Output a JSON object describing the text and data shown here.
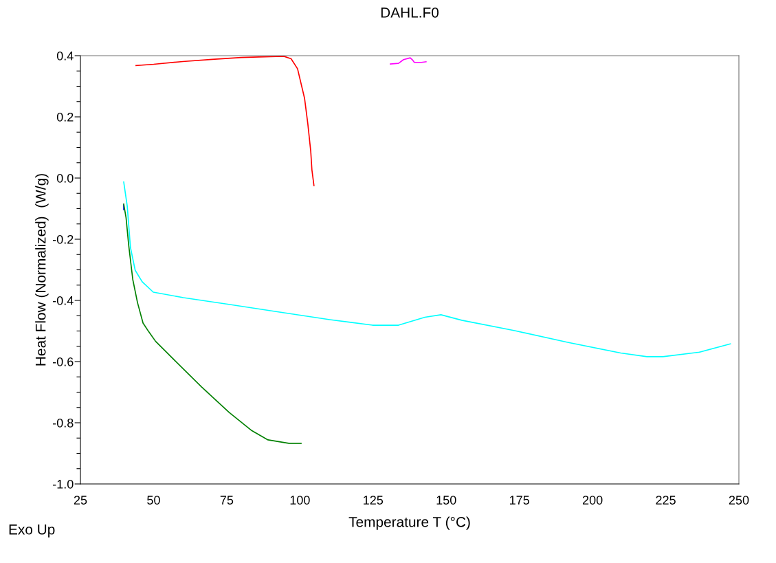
{
  "chart_data": {
    "type": "line",
    "title": "DAHL.F0",
    "xlabel": "Temperature T (°C)",
    "ylabel": "Heat Flow (Normalized)  (W/g)",
    "annotations": [
      "Exo Up"
    ],
    "grid": false,
    "marker": "none",
    "line_style": "solid",
    "xlim": [
      25,
      250
    ],
    "xticks": [
      25,
      50,
      75,
      100,
      125,
      150,
      175,
      200,
      225,
      250
    ],
    "ylim": [
      -1.0,
      0.4
    ],
    "yticks": [
      {
        "value": -1.0,
        "label": "-1.0"
      },
      {
        "value": -0.95,
        "label": null
      },
      {
        "value": -0.9,
        "label": null
      },
      {
        "value": -0.85,
        "label": null
      },
      {
        "value": -0.8,
        "label": "-0.8"
      },
      {
        "value": -0.75,
        "label": null
      },
      {
        "value": -0.7,
        "label": null
      },
      {
        "value": -0.65,
        "label": null
      },
      {
        "value": -0.6,
        "label": "-0.6"
      },
      {
        "value": -0.55,
        "label": null
      },
      {
        "value": -0.5,
        "label": null
      },
      {
        "value": -0.45,
        "label": null
      },
      {
        "value": -0.4,
        "label": "-0.4"
      },
      {
        "value": -0.35,
        "label": null
      },
      {
        "value": -0.3,
        "label": null
      },
      {
        "value": -0.25,
        "label": null
      },
      {
        "value": -0.2,
        "label": "-0.2"
      },
      {
        "value": -0.15,
        "label": null
      },
      {
        "value": -0.1,
        "label": null
      },
      {
        "value": -0.05,
        "label": null
      },
      {
        "value": 0.0,
        "label": "0.0"
      },
      {
        "value": 0.05,
        "label": null
      },
      {
        "value": 0.1,
        "label": null
      },
      {
        "value": 0.15,
        "label": null
      },
      {
        "value": 0.2,
        "label": "0.2"
      },
      {
        "value": 0.25,
        "label": null
      },
      {
        "value": 0.3,
        "label": null
      },
      {
        "value": 0.35,
        "label": null
      },
      {
        "value": 0.4,
        "label": "0.4"
      }
    ],
    "series": [
      {
        "color": "#ff0000",
        "x": [
          44,
          50,
          60,
          70,
          80,
          90,
          94.5,
          97,
          99.2,
          101.6,
          102.7,
          103.7,
          104.1,
          104.8
        ],
        "values": [
          0.368,
          0.372,
          0.381,
          0.388,
          0.394,
          0.397,
          0.398,
          0.39,
          0.357,
          0.26,
          0.178,
          0.088,
          0.027,
          -0.025
        ]
      },
      {
        "color": "#ff00ff",
        "x": [
          130.9,
          133.7,
          135.4,
          137.7,
          138.4,
          139.1,
          141.5,
          143.1
        ],
        "values": [
          0.373,
          0.375,
          0.387,
          0.393,
          0.387,
          0.378,
          0.378,
          0.38
        ]
      },
      {
        "color": "#00ffff",
        "x": [
          39.8,
          41.0,
          42.1,
          43.7,
          46.1,
          49.9,
          60.2,
          75.7,
          91.5,
          110.2,
          124.8,
          133.7,
          142.7,
          148.2,
          155.3,
          173.4,
          191.5,
          209.6,
          218.6,
          224,
          236.6,
          247.1
        ],
        "values": [
          -0.013,
          -0.092,
          -0.227,
          -0.301,
          -0.339,
          -0.373,
          -0.391,
          -0.413,
          -0.436,
          -0.463,
          -0.481,
          -0.481,
          -0.455,
          -0.447,
          -0.465,
          -0.499,
          -0.537,
          -0.572,
          -0.584,
          -0.584,
          -0.569,
          -0.542
        ]
      },
      {
        "color": "#0000ff",
        "x": [
          39.8,
          39.8
        ],
        "values": [
          -0.088,
          -0.103
        ]
      },
      {
        "color": "#008000",
        "x": [
          39.8,
          40.6,
          41.5,
          42.9,
          44.5,
          46.4,
          48.4,
          50.7,
          57,
          66.4,
          75.8,
          83.6,
          89.1,
          96.2,
          100.4
        ],
        "values": [
          -0.085,
          -0.13,
          -0.22,
          -0.332,
          -0.407,
          -0.474,
          -0.503,
          -0.534,
          -0.594,
          -0.683,
          -0.766,
          -0.826,
          -0.856,
          -0.867,
          -0.867
        ]
      }
    ]
  }
}
